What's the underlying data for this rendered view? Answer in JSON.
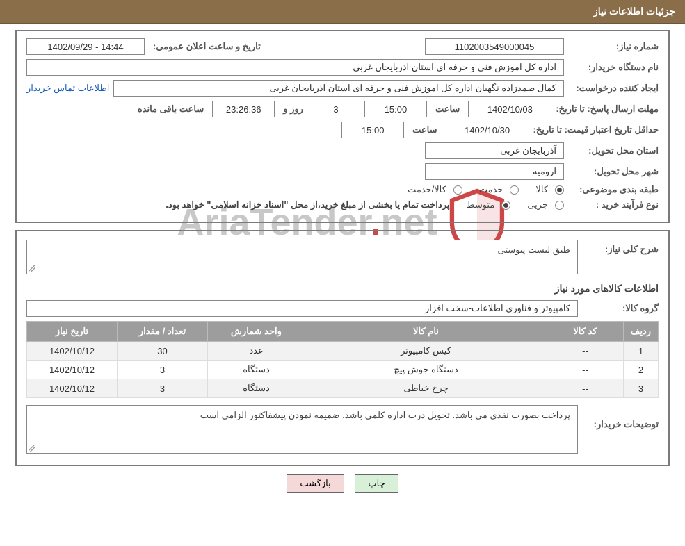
{
  "header": {
    "title": "جزئیات اطلاعات نیاز"
  },
  "fields": {
    "need_no_label": "شماره نیاز:",
    "need_no": "1102003549000045",
    "announce_label": "تاریخ و ساعت اعلان عمومی:",
    "announce_value": "14:44 - 1402/09/29",
    "buyer_org_label": "نام دستگاه خریدار:",
    "buyer_org": "اداره کل اموزش فنی و حرفه ای استان اذربایجان غربی",
    "requester_label": "ایجاد کننده درخواست:",
    "requester": "کمال صمدزاده نگهبان اداره کل اموزش فنی و حرفه ای استان اذربایجان غربی",
    "contact_link": "اطلاعات تماس خریدار",
    "deadline_label": "مهلت ارسال پاسخ:",
    "until_date_label": "تا تاریخ:",
    "deadline_date": "1402/10/03",
    "time_label": "ساعت",
    "deadline_time": "15:00",
    "days_remaining": "3",
    "days_and_label": "روز و",
    "countdown": "23:26:36",
    "remaining_label": "ساعت باقی مانده",
    "min_valid_label": "حداقل تاریخ اعتبار قیمت:",
    "min_valid_date": "1402/10/30",
    "min_valid_time": "15:00",
    "province_label": "استان محل تحویل:",
    "province": "آذربایجان غربی",
    "city_label": "شهر محل تحویل:",
    "city": "ارومیه",
    "category_label": "طبقه بندی موضوعی:",
    "cat_goods": "کالا",
    "cat_service": "خدمت",
    "cat_goods_service": "کالا/خدمت",
    "process_label": "نوع فرآیند خرید :",
    "process_partial": "جزیی",
    "process_medium": "متوسط",
    "process_note": "پرداخت تمام یا بخشی از مبلغ خرید،از محل \"اسناد خزانه اسلامی\" خواهد بود.",
    "general_desc_label": "شرح کلی نیاز:",
    "general_desc": "طبق لیست پیوستی",
    "items_section": "اطلاعات کالاهای مورد نیاز",
    "group_label": "گروه کالا:",
    "group_value": "کامپیوتر و فناوری اطلاعات-سخت افزار",
    "buyer_notes_label": "توضیحات خریدار:",
    "buyer_notes": "پرداخت بصورت نقدی می باشد. تحویل درب اداره کلمی باشد. ضمیمه نمودن پیشفاکتور الزامی است"
  },
  "table": {
    "headers": {
      "row": "ردیف",
      "code": "کد کالا",
      "name": "نام کالا",
      "unit": "واحد شمارش",
      "qty": "تعداد / مقدار",
      "date": "تاریخ نیاز"
    },
    "rows": [
      {
        "idx": "1",
        "code": "--",
        "name": "کیس کامپیوتر",
        "unit": "عدد",
        "qty": "30",
        "date": "1402/10/12"
      },
      {
        "idx": "2",
        "code": "--",
        "name": "دستگاه جوش پیچ",
        "unit": "دستگاه",
        "qty": "3",
        "date": "1402/10/12"
      },
      {
        "idx": "3",
        "code": "--",
        "name": "چرخ خیاطی",
        "unit": "دستگاه",
        "qty": "3",
        "date": "1402/10/12"
      }
    ]
  },
  "buttons": {
    "print": "چاپ",
    "back": "بازگشت"
  },
  "watermark": {
    "text1": "AriaTender",
    "text2": "ne",
    "text3": "t"
  },
  "colors": {
    "header_bg": "#8a6e4a",
    "border": "#7a7a7a",
    "th_bg": "#9d9d9d",
    "link": "#1a5db5",
    "btn_print": "#d8f0d8",
    "btn_back": "#f5d8d8",
    "watermark": "#bfbfbf",
    "shield_red": "#c62828"
  }
}
